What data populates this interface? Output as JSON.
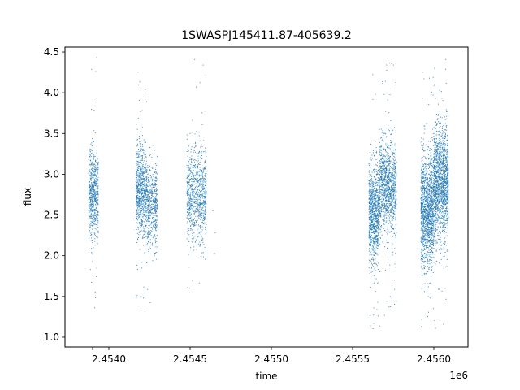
{
  "chart_data": {
    "type": "scatter",
    "title": "1SWASPJ145411.87-405639.2",
    "xlabel": "time",
    "ylabel": "flux",
    "x_offset_label": "1e6",
    "xlim": [
      2453730,
      2456210
    ],
    "ylim": [
      0.88,
      4.56
    ],
    "x_ticks": [
      2453900,
      2454000,
      2454500,
      2455000,
      2455500,
      2456000
    ],
    "x_tick_labels": [
      "",
      "2.4540",
      "2.4545",
      "2.4550",
      "2.4555",
      "2.4560"
    ],
    "y_ticks": [
      1.0,
      1.5,
      2.0,
      2.5,
      3.0,
      3.5,
      4.0,
      4.5
    ],
    "y_tick_labels": [
      "1.0",
      "1.5",
      "2.0",
      "2.5",
      "3.0",
      "3.5",
      "4.0",
      "4.5"
    ],
    "grid": false,
    "marker_color": "#1f77b4",
    "clusters": [
      {
        "x_start": 2453876,
        "x_end": 2453936,
        "y_center": 2.75,
        "y_spread": 0.28,
        "y_min": 1.28,
        "y_max": 4.45,
        "points": 650
      },
      {
        "x_start": 2454168,
        "x_end": 2454235,
        "y_center": 2.8,
        "y_spread": 0.28,
        "y_min": 1.22,
        "y_max": 4.27,
        "points": 800
      },
      {
        "x_start": 2454235,
        "x_end": 2454300,
        "y_center": 2.62,
        "y_spread": 0.25,
        "y_min": 1.25,
        "y_max": 3.6,
        "points": 500
      },
      {
        "x_start": 2454480,
        "x_end": 2454600,
        "y_center": 2.75,
        "y_spread": 0.28,
        "y_min": 1.6,
        "y_max": 4.43,
        "points": 900
      },
      {
        "x_start": 2455600,
        "x_end": 2455660,
        "y_center": 2.5,
        "y_spread": 0.3,
        "y_min": 1.1,
        "y_max": 4.38,
        "points": 900
      },
      {
        "x_start": 2455660,
        "x_end": 2455770,
        "y_center": 2.85,
        "y_spread": 0.28,
        "y_min": 1.05,
        "y_max": 4.4,
        "points": 1200
      },
      {
        "x_start": 2455920,
        "x_end": 2456000,
        "y_center": 2.55,
        "y_spread": 0.35,
        "y_min": 1.12,
        "y_max": 4.3,
        "points": 1400
      },
      {
        "x_start": 2456000,
        "x_end": 2456090,
        "y_center": 2.9,
        "y_spread": 0.33,
        "y_min": 1.1,
        "y_max": 4.42,
        "points": 1500
      }
    ],
    "outliers": [
      [
        2454640,
        2.55
      ],
      [
        2454655,
        2.28
      ],
      [
        2454650,
        2.03
      ]
    ]
  }
}
